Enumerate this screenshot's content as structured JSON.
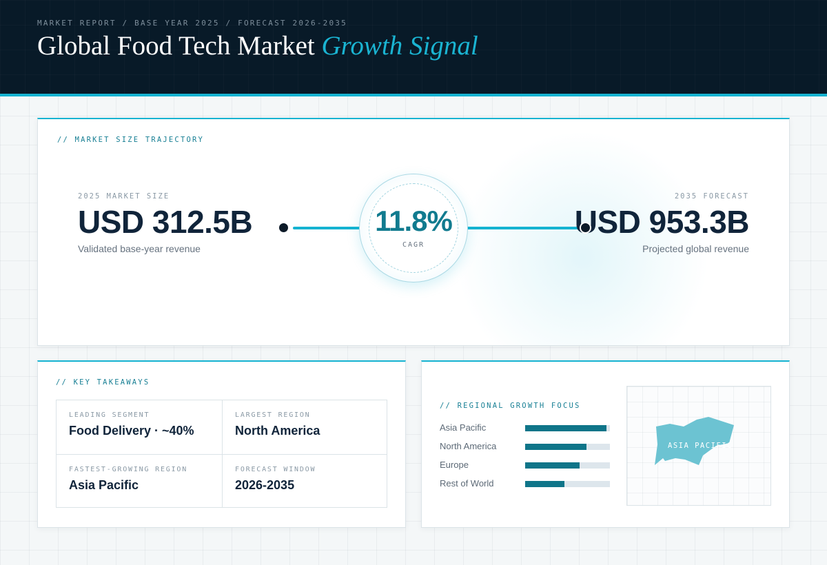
{
  "header": {
    "eyebrow": "MARKET REPORT / BASE YEAR 2025 / FORECAST 2026-2035",
    "title_main": "Global Food Tech Market",
    "title_accent": "Growth Signal"
  },
  "trajectory": {
    "label": "// MARKET SIZE TRAJECTORY",
    "start": {
      "kicker": "2025 MARKET SIZE",
      "value": "USD 312.5B",
      "caption": "Validated base-year revenue"
    },
    "cagr": {
      "value": "11.8%",
      "label": "CAGR"
    },
    "end": {
      "kicker": "2035 FORECAST",
      "value": "USD 953.3B",
      "caption": "Projected global revenue"
    }
  },
  "takeaways": {
    "label": "// KEY TAKEAWAYS",
    "items": [
      {
        "key": "LEADING SEGMENT",
        "value": "Food Delivery · ~40%"
      },
      {
        "key": "LARGEST REGION",
        "value": "North America"
      },
      {
        "key": "FASTEST-GROWING REGION",
        "value": "Asia Pacific"
      },
      {
        "key": "FORECAST WINDOW",
        "value": "2026-2035"
      }
    ]
  },
  "regional": {
    "label": "// REGIONAL GROWTH FOCUS",
    "bars": [
      {
        "name": "Asia Pacific",
        "level": 0.96
      },
      {
        "name": "North America",
        "level": 0.72
      },
      {
        "name": "Europe",
        "level": 0.64
      },
      {
        "name": "Rest of World",
        "level": 0.46
      }
    ],
    "map_label": "ASIA PACIFIC"
  },
  "colors": {
    "accent": "#15b3d1",
    "accent_dark": "#0f7589",
    "header_bg": "#081a28",
    "text_dark": "#10243a"
  }
}
